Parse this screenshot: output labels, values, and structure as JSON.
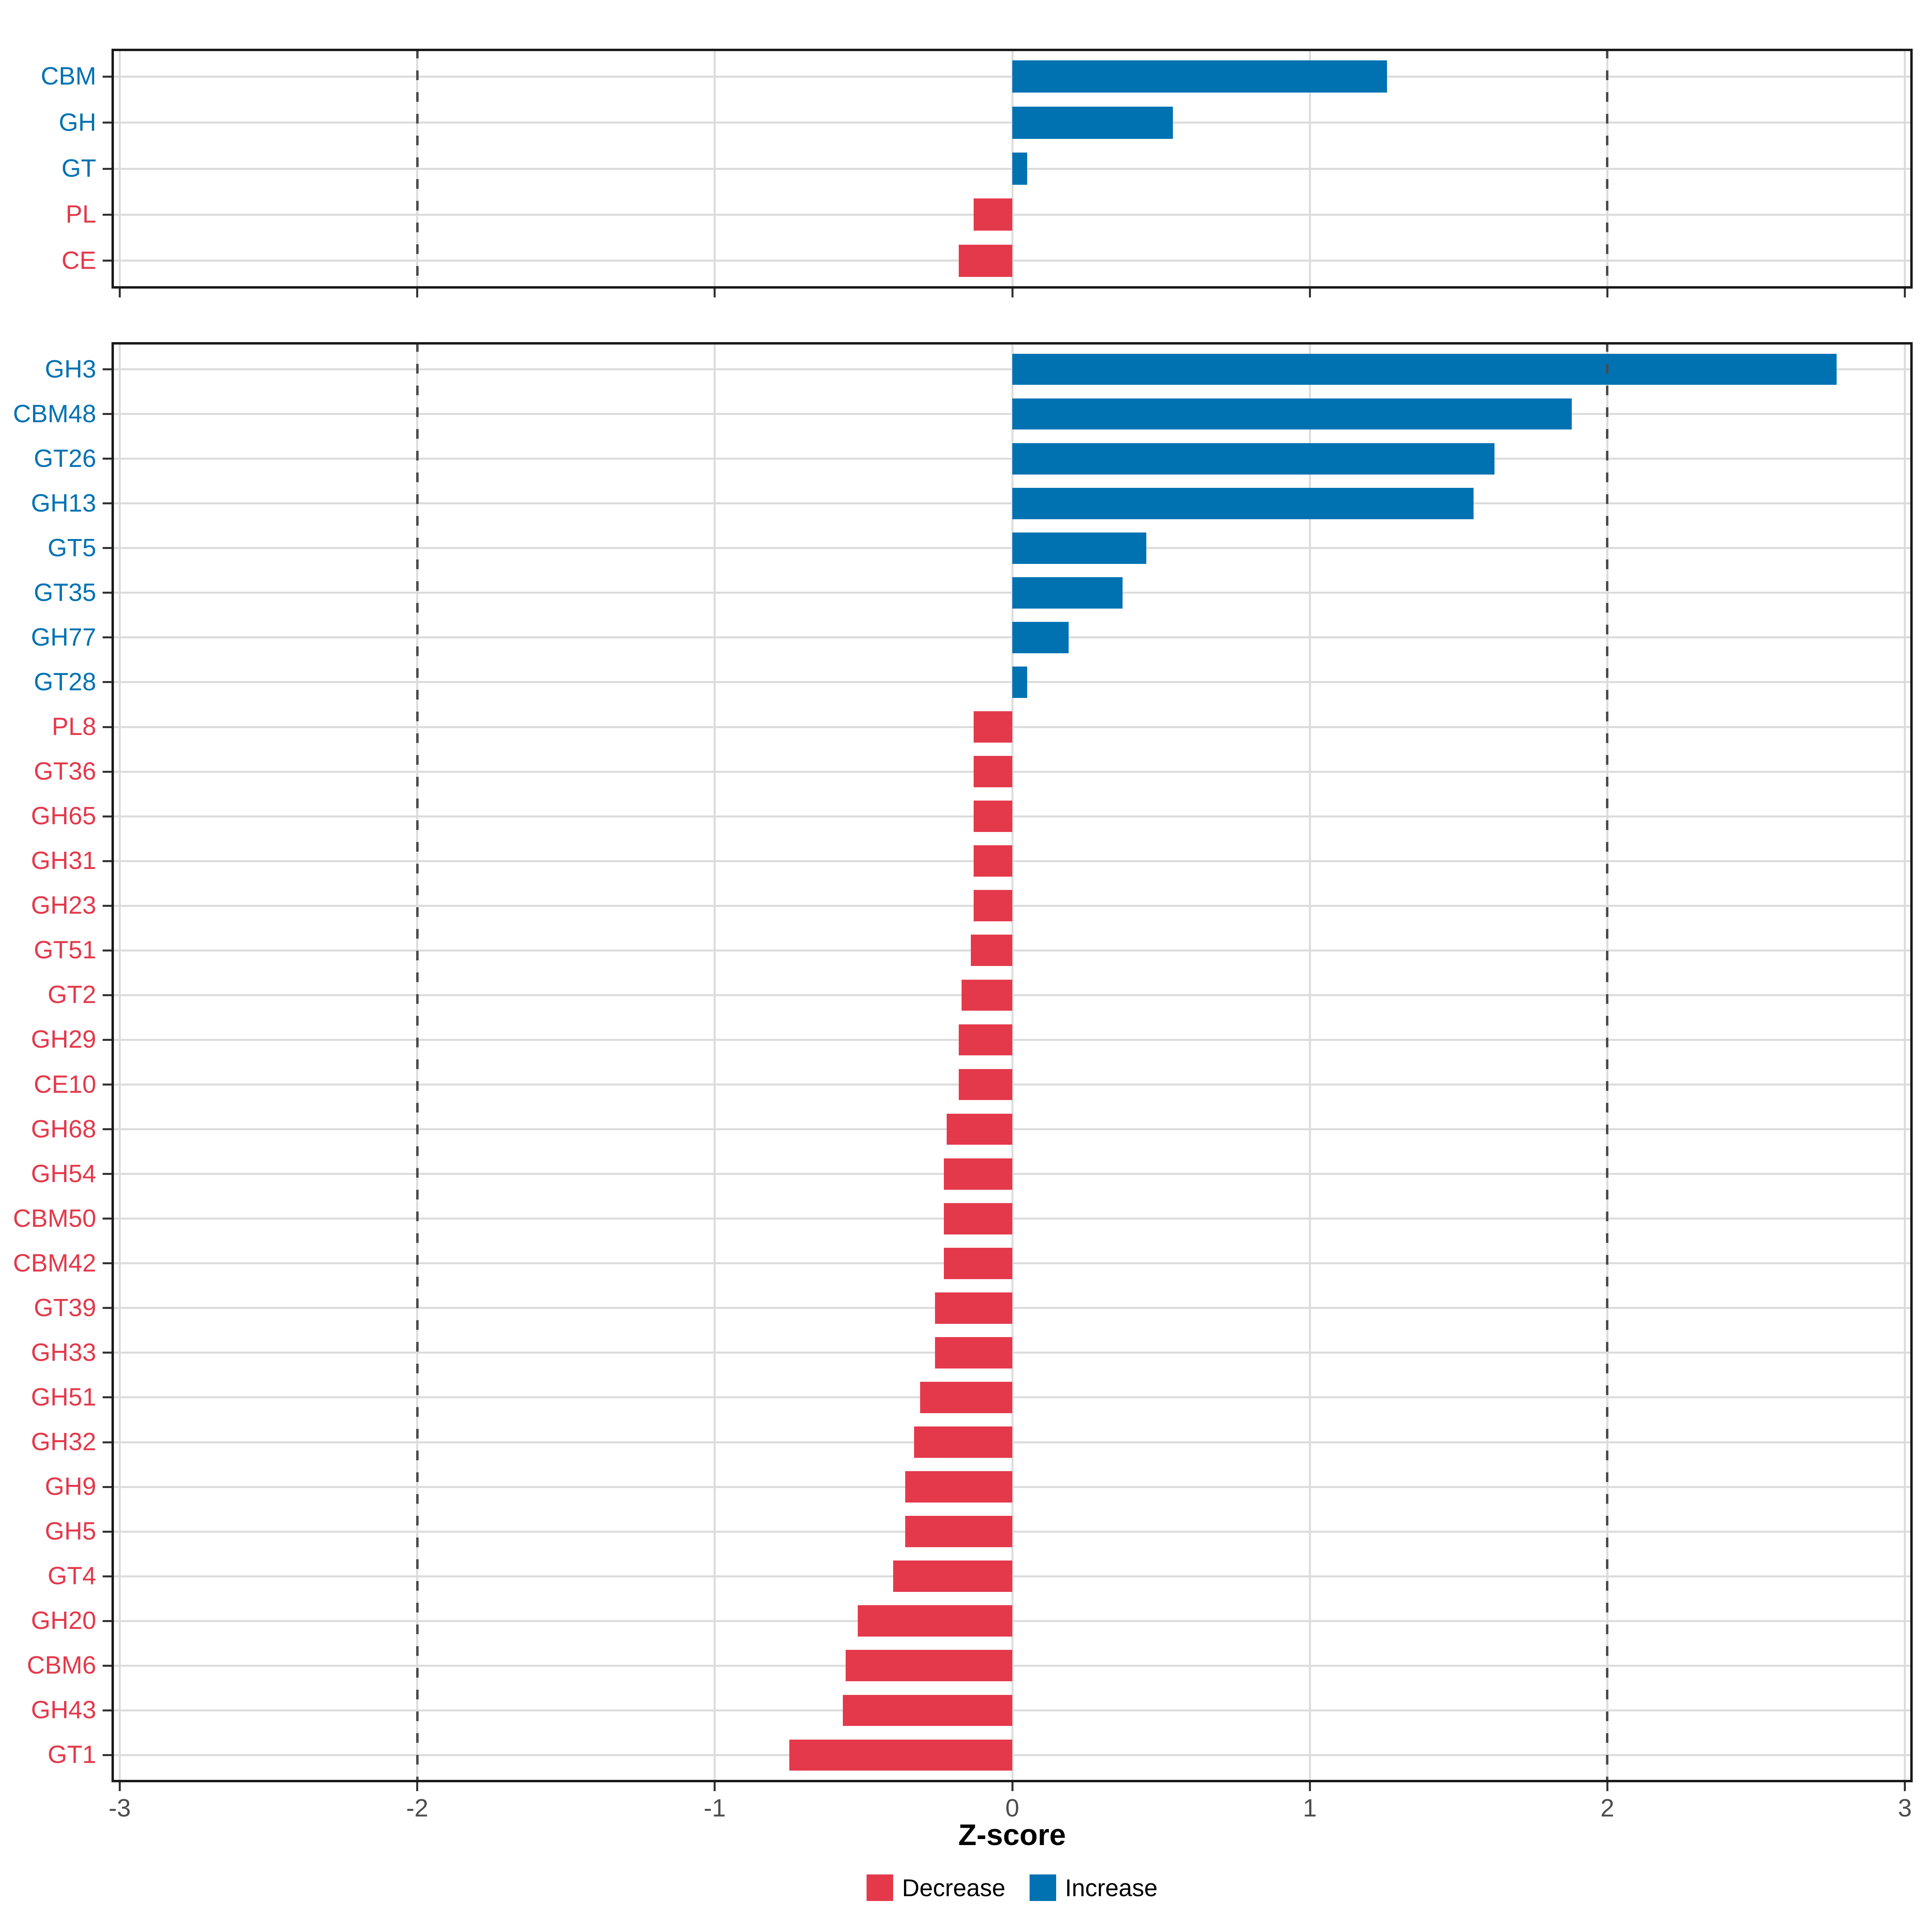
{
  "figure": {
    "xlabel": "Z-score",
    "x_axis_ticks": [
      -3,
      -2,
      -1,
      0,
      1,
      2,
      3
    ],
    "legend": {
      "position": "bottom",
      "items": [
        {
          "label": "Decrease",
          "color": "#E4394B"
        },
        {
          "label": "Increase",
          "color": "#0072B2"
        }
      ]
    },
    "colors": {
      "increase": "#0072B2",
      "decrease": "#E4394B",
      "grid": "#DCDCDC",
      "dashed_ref": "#4A4A4A",
      "panel_border": "#1A1A1A",
      "axis_text": "#4D4D4D",
      "title_text": "#000000",
      "background": "#FFFFFF"
    }
  },
  "chart_data": [
    {
      "type": "bar",
      "orientation": "horizontal",
      "panel": "top",
      "categories": [
        "CBM",
        "GH",
        "GT",
        "PL",
        "CE"
      ],
      "values": [
        1.26,
        0.54,
        0.05,
        -0.13,
        -0.18
      ],
      "xlim": [
        -3,
        3
      ],
      "xlabel": "Z-score",
      "grid": true,
      "dashed_reference_x": [
        -2,
        2
      ],
      "bar_color_rule": "blue #0072B2 if value >= 0 (Increase), red #E4394B if value < 0 (Decrease); category labels colored the same way"
    },
    {
      "type": "bar",
      "orientation": "horizontal",
      "panel": "bottom",
      "categories": [
        "GH3",
        "CBM48",
        "GT26",
        "GH13",
        "GT5",
        "GT35",
        "GH77",
        "GT28",
        "PL8",
        "GT36",
        "GH65",
        "GH31",
        "GH23",
        "GT51",
        "GT2",
        "GH29",
        "CE10",
        "GH68",
        "GH54",
        "CBM50",
        "CBM42",
        "GT39",
        "GH33",
        "GH51",
        "GH32",
        "GH9",
        "GH5",
        "GT4",
        "GH20",
        "CBM6",
        "GH43",
        "GT1"
      ],
      "values": [
        2.77,
        1.88,
        1.62,
        1.55,
        0.45,
        0.37,
        0.19,
        0.05,
        -0.13,
        -0.13,
        -0.13,
        -0.13,
        -0.13,
        -0.14,
        -0.17,
        -0.18,
        -0.18,
        -0.22,
        -0.23,
        -0.23,
        -0.23,
        -0.26,
        -0.26,
        -0.31,
        -0.33,
        -0.36,
        -0.36,
        -0.4,
        -0.52,
        -0.56,
        -0.57,
        -0.75
      ],
      "xlim": [
        -3,
        3
      ],
      "xlabel": "Z-score",
      "grid": true,
      "dashed_reference_x": [
        -2,
        2
      ],
      "bar_color_rule": "blue #0072B2 if value >= 0 (Increase), red #E4394B if value < 0 (Decrease); category labels colored the same way"
    }
  ]
}
